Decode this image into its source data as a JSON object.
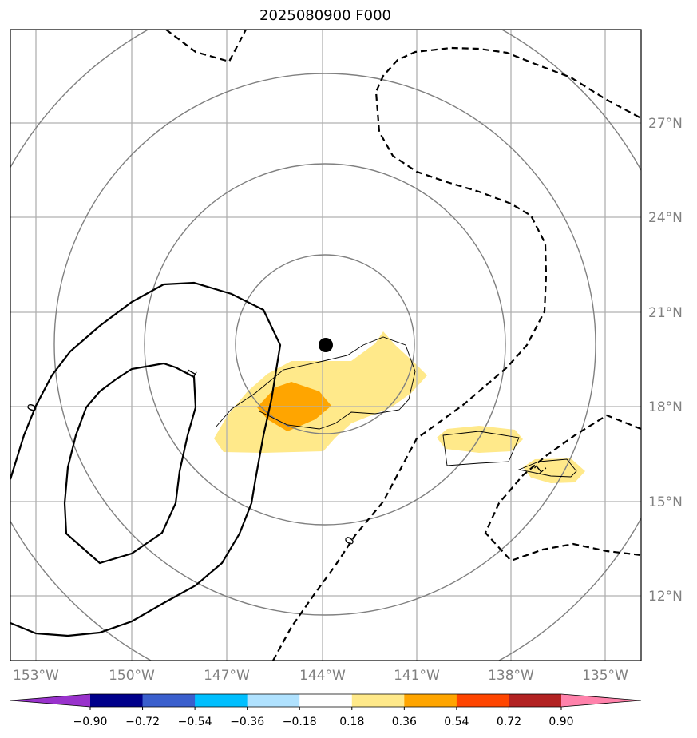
{
  "title": "2025080900 F000",
  "lon_labels": [
    "153°W",
    "150°W",
    "147°W",
    "144°W",
    "141°W",
    "138°W",
    "135°W"
  ],
  "lat_labels": [
    "27°N",
    "24°N",
    "21°N",
    "18°N",
    "15°N",
    "12°N"
  ],
  "contour_labels": [
    "0",
    "1",
    "0",
    "1."
  ],
  "colorbar": {
    "ticks": [
      "−0.90",
      "−0.72",
      "−0.54",
      "−0.36",
      "−0.18",
      "0.18",
      "0.36",
      "0.54",
      "0.72",
      "0.90"
    ],
    "colors": [
      "#9932cc",
      "#00008b",
      "#3a5fcd",
      "#00bfff",
      "#b0e2ff",
      "#ffffff",
      "#ffe98a",
      "#ffa500",
      "#ff4500",
      "#b22222",
      "#ff82ab"
    ]
  },
  "storm_center": {
    "lon": "144°W",
    "lat": "20°N"
  }
}
